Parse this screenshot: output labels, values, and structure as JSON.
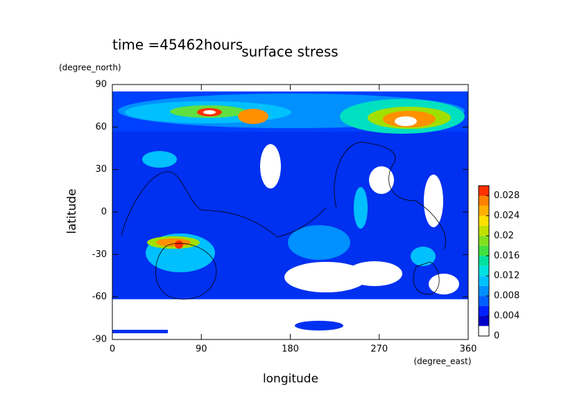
{
  "chart_data": {
    "type": "contour",
    "title": "surface stress",
    "subtitle": "time =45462hours",
    "xlabel": "longitude",
    "xunit": "(degree_east)",
    "ylabel": "latitude",
    "yunit": "(degree_north)",
    "xlim": [
      0,
      360
    ],
    "xticks": [
      0,
      90,
      180,
      270,
      360
    ],
    "ylim": [
      -90,
      90
    ],
    "yticks": [
      -90,
      -60,
      -30,
      0,
      30,
      60,
      90
    ],
    "colorbar": {
      "levels": [
        0,
        0.002,
        0.004,
        0.006,
        0.008,
        0.01,
        0.012,
        0.014,
        0.016,
        0.018,
        0.02,
        0.022,
        0.024,
        0.026,
        0.028,
        0.03
      ],
      "colors": [
        "#ffffff",
        "#0000c8",
        "#0020ff",
        "#0060ff",
        "#0090ff",
        "#00c0ff",
        "#00e0e0",
        "#00e0a0",
        "#40e040",
        "#80e020",
        "#c0e000",
        "#ffe000",
        "#ffb000",
        "#ff8000",
        "#ff3000"
      ],
      "ticks": [
        0,
        0.004,
        0.008,
        0.012,
        0.016,
        0.02,
        0.024,
        0.028
      ]
    }
  }
}
